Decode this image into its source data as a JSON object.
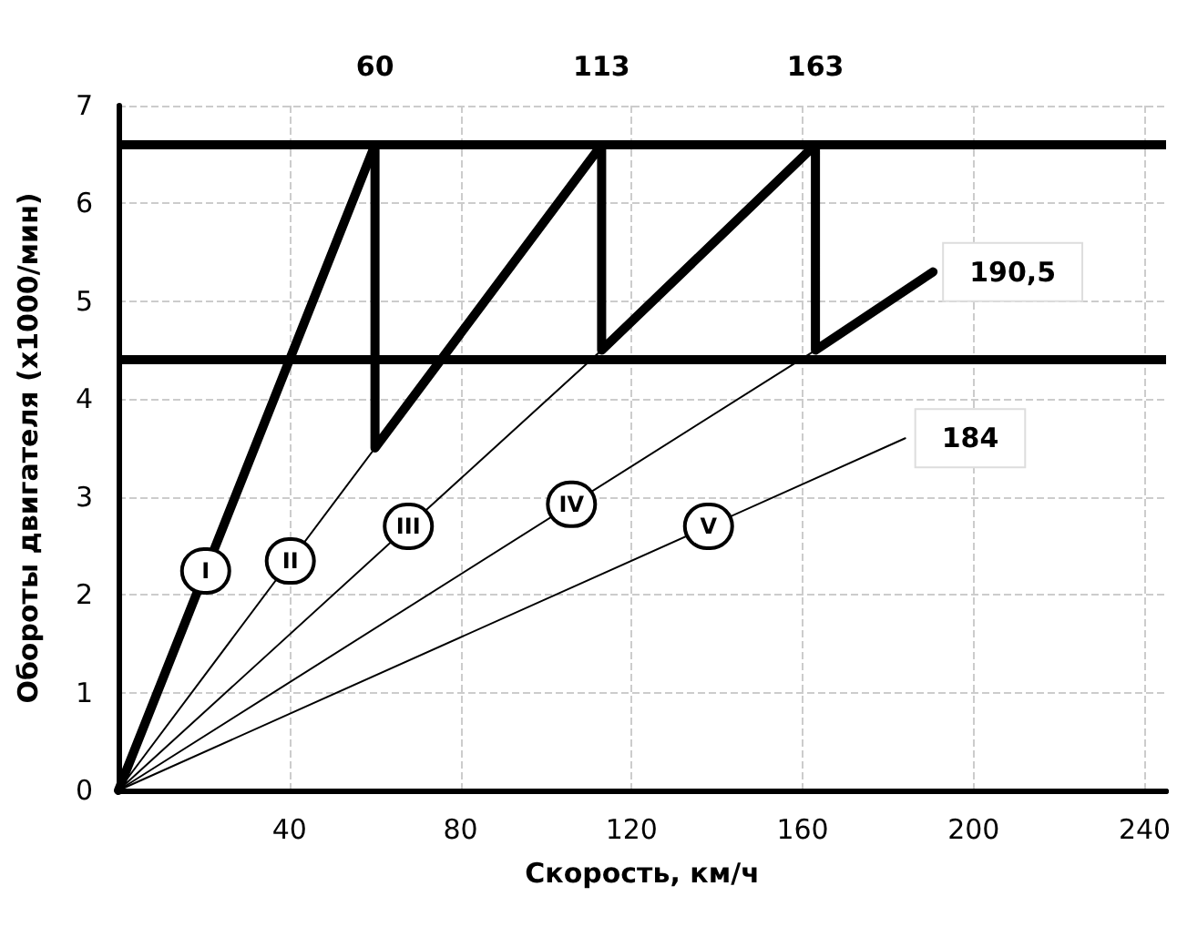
{
  "chart_data": {
    "type": "line",
    "xlabel": "Скорость, км/ч",
    "ylabel": "Обороты двигателя (x1000/мин)",
    "series": [
      {
        "name": "I",
        "color": "#000000",
        "x": [
          0,
          60
        ],
        "values": [
          0,
          6.6
        ]
      },
      {
        "name": "II",
        "color": "#000000",
        "x": [
          0,
          60
        ],
        "values": [
          0,
          3.5
        ]
      },
      {
        "name": "III",
        "color": "#000000",
        "x": [
          0,
          113
        ],
        "values": [
          0,
          4.5
        ]
      },
      {
        "name": "IV",
        "color": "#000000",
        "x": [
          0,
          163
        ],
        "values": [
          0,
          4.5
        ]
      },
      {
        "name": "V",
        "color": "#000000",
        "x": [
          0,
          184
        ],
        "values": [
          0,
          3.6
        ]
      },
      {
        "color": "#000000",
        "x": [
          60,
          60,
          113,
          113,
          163,
          163,
          190.5
        ],
        "values": [
          6.6,
          3.5,
          6.6,
          4.5,
          6.6,
          4.5,
          5.3
        ]
      }
    ],
    "xlim": [
      0,
      245
    ],
    "xticks": [
      40,
      80,
      120,
      160,
      200,
      240
    ],
    "x2lim": [
      0,
      245
    ],
    "x2ticks": [
      60,
      113,
      163
    ],
    "ylim": [
      0,
      7
    ],
    "yticks": [
      0,
      1,
      2,
      3,
      4,
      5,
      6,
      7
    ],
    "ref_lines": [
      {
        "axis": "y",
        "value": 6.6,
        "color": "#000000"
      },
      {
        "axis": "y",
        "value": 4.4,
        "color": "#000000"
      }
    ],
    "annotations": [
      {
        "text": "190,5",
        "x": 190.5,
        "y": 5.3
      },
      {
        "text": "184",
        "x": 184,
        "y": 3.6
      }
    ],
    "grid": true,
    "legend": false,
    "marker": "none",
    "line_style": "solid"
  }
}
